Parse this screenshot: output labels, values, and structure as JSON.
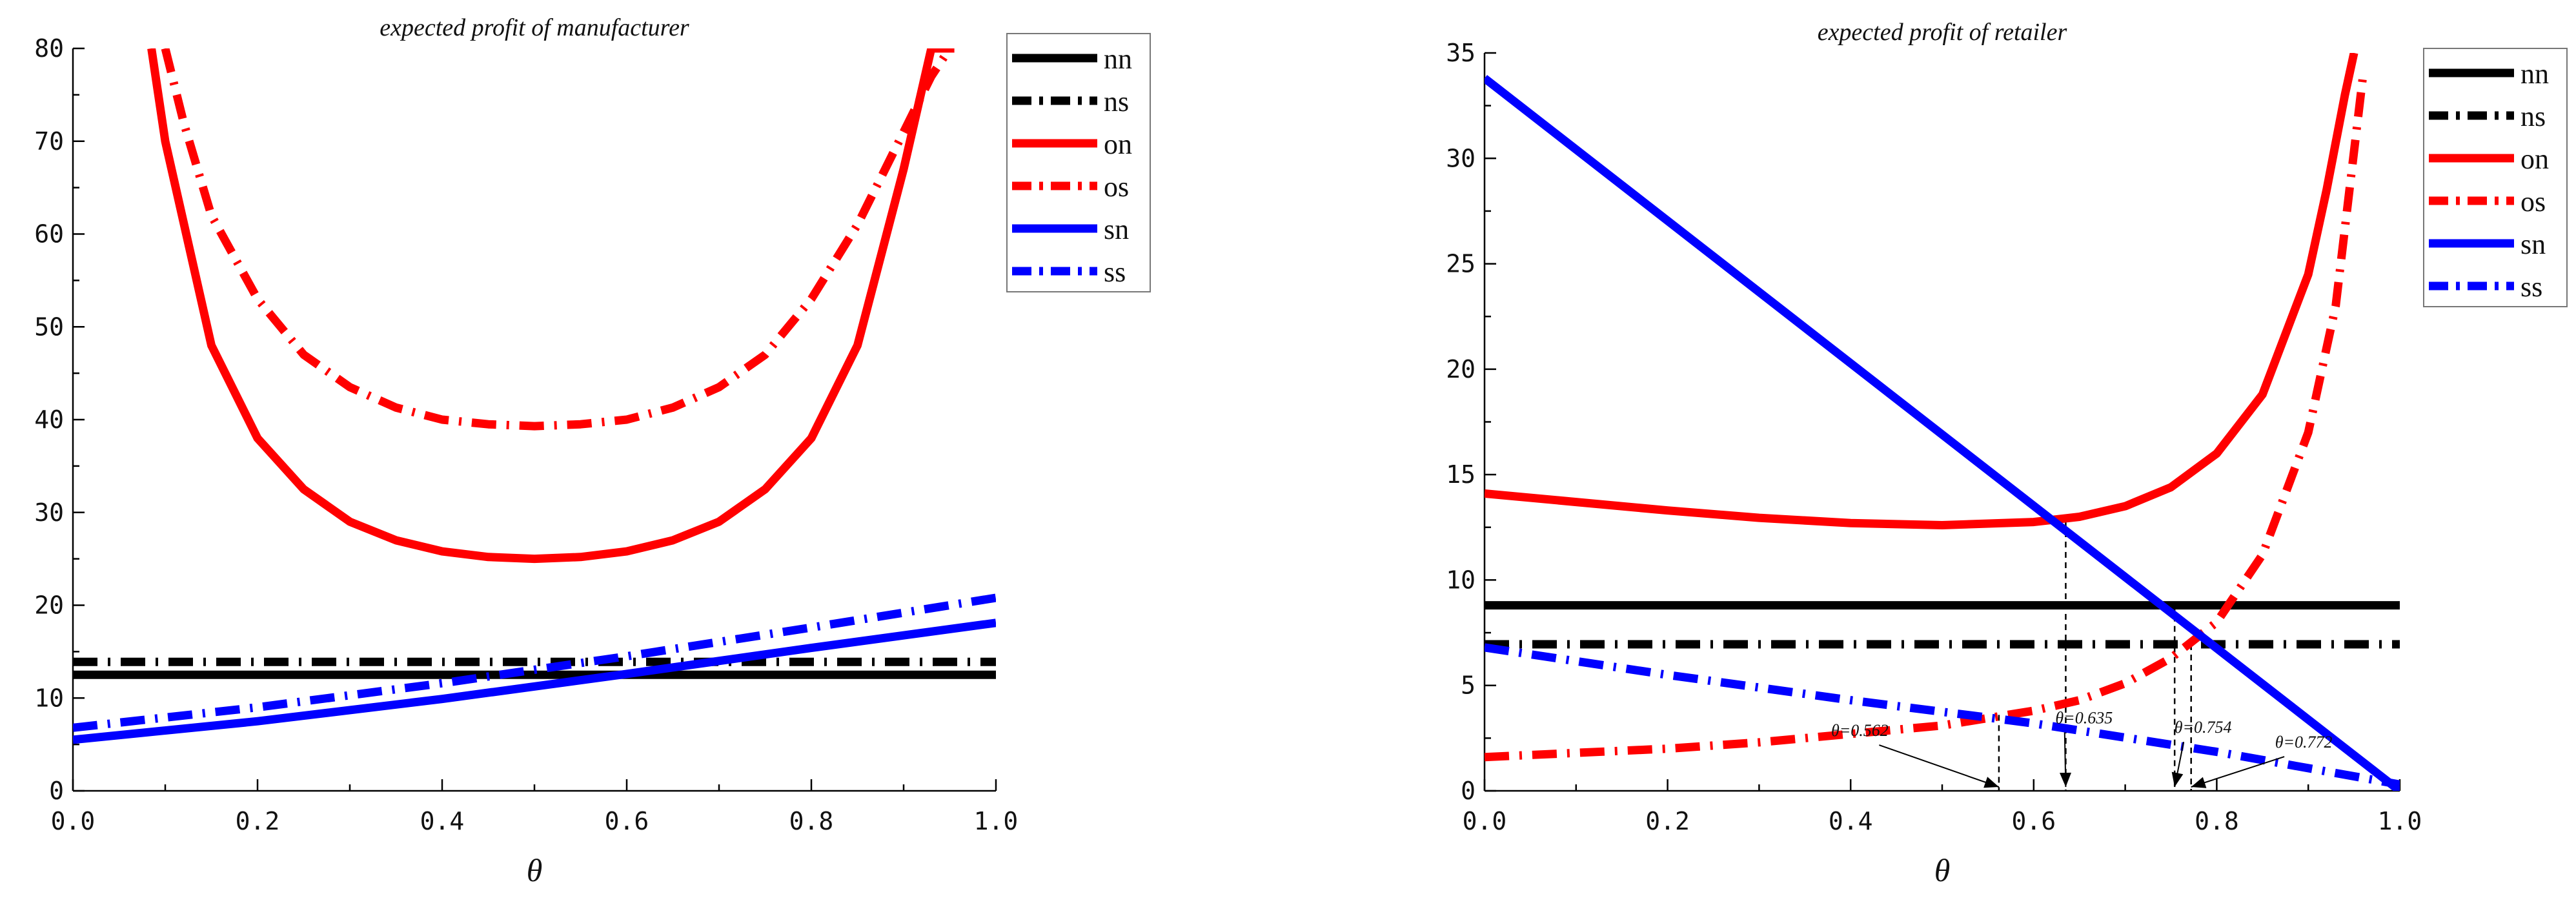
{
  "chart_data": [
    {
      "type": "line",
      "title": "expected profit of manufacturer",
      "xlabel": "θ",
      "ylabel": "",
      "xlim": [
        0,
        1
      ],
      "ylim": [
        0,
        80
      ],
      "xticks": [
        0.0,
        0.2,
        0.4,
        0.6,
        0.8,
        1.0
      ],
      "xtick_labels": [
        "0.0",
        "0.2",
        "0.4",
        "0.6",
        "0.8",
        "1.0"
      ],
      "yticks": [
        0,
        10,
        20,
        30,
        40,
        50,
        60,
        70,
        80
      ],
      "ytick_labels": [
        "0",
        "10",
        "20",
        "30",
        "40",
        "50",
        "60",
        "70",
        "80"
      ],
      "legend_position": "top-right",
      "series": [
        {
          "name": "nn",
          "color": "#000000",
          "style": "solid",
          "x": [
            0,
            0.5,
            1
          ],
          "y": [
            12.5,
            12.5,
            12.5
          ]
        },
        {
          "name": "ns",
          "color": "#000000",
          "style": "dashdot",
          "x": [
            0,
            0.5,
            1
          ],
          "y": [
            13.9,
            13.9,
            13.9
          ]
        },
        {
          "name": "on",
          "color": "#ff0000",
          "style": "solid",
          "x": [
            0.085,
            0.1,
            0.15,
            0.2,
            0.25,
            0.3,
            0.35,
            0.4,
            0.45,
            0.5,
            0.55,
            0.6,
            0.65,
            0.7,
            0.75,
            0.8,
            0.85,
            0.9,
            0.93,
            0.95,
            0.955
          ],
          "y": [
            80,
            70,
            48,
            38,
            32.5,
            29,
            27,
            25.8,
            25.2,
            25,
            25.2,
            25.8,
            27,
            29,
            32.5,
            38,
            48,
            67,
            80,
            80,
            80
          ]
        },
        {
          "name": "os",
          "color": "#ff0000",
          "style": "dashdot",
          "x": [
            0.1,
            0.12,
            0.15,
            0.2,
            0.25,
            0.3,
            0.35,
            0.4,
            0.45,
            0.5,
            0.55,
            0.6,
            0.65,
            0.7,
            0.75,
            0.8,
            0.85,
            0.9,
            0.93,
            0.95
          ],
          "y": [
            80,
            72,
            62,
            53,
            47,
            43.5,
            41.3,
            40,
            39.5,
            39.3,
            39.5,
            40,
            41.3,
            43.5,
            47,
            53,
            61,
            71,
            77,
            80
          ]
        },
        {
          "name": "sn",
          "color": "#0000ff",
          "style": "solid",
          "x": [
            0,
            0.2,
            0.4,
            0.6,
            0.8,
            1.0
          ],
          "y": [
            5.5,
            7.5,
            9.9,
            12.6,
            15.4,
            18.1
          ]
        },
        {
          "name": "ss",
          "color": "#0000ff",
          "style": "dashdot",
          "x": [
            0,
            0.2,
            0.4,
            0.6,
            0.8,
            1.0
          ],
          "y": [
            6.8,
            9.0,
            11.6,
            14.5,
            17.6,
            20.8
          ]
        }
      ]
    },
    {
      "type": "line",
      "title": "expected profit of retailer",
      "xlabel": "θ",
      "ylabel": "",
      "xlim": [
        0,
        1
      ],
      "ylim": [
        0,
        35
      ],
      "xticks": [
        0.0,
        0.2,
        0.4,
        0.6,
        0.8,
        1.0
      ],
      "xtick_labels": [
        "0.0",
        "0.2",
        "0.4",
        "0.6",
        "0.8",
        "1.0"
      ],
      "yticks": [
        0,
        5,
        10,
        15,
        20,
        25,
        30,
        35
      ],
      "ytick_labels": [
        "0",
        "5",
        "10",
        "15",
        "20",
        "25",
        "30",
        "35"
      ],
      "legend_position": "top-right",
      "series": [
        {
          "name": "nn",
          "color": "#000000",
          "style": "solid",
          "x": [
            0,
            0.5,
            1
          ],
          "y": [
            8.8,
            8.8,
            8.8
          ]
        },
        {
          "name": "ns",
          "color": "#000000",
          "style": "dashdot",
          "x": [
            0,
            0.5,
            1
          ],
          "y": [
            6.95,
            6.95,
            6.95
          ]
        },
        {
          "name": "on",
          "color": "#ff0000",
          "style": "solid",
          "x": [
            0,
            0.1,
            0.2,
            0.3,
            0.4,
            0.5,
            0.6,
            0.65,
            0.7,
            0.75,
            0.8,
            0.85,
            0.9,
            0.92,
            0.94,
            0.95
          ],
          "y": [
            14.1,
            13.7,
            13.3,
            12.95,
            12.7,
            12.6,
            12.75,
            13.0,
            13.5,
            14.4,
            16.0,
            18.8,
            24.5,
            28.5,
            33.0,
            35.0
          ]
        },
        {
          "name": "os",
          "color": "#ff0000",
          "style": "dashdot",
          "x": [
            0,
            0.1,
            0.2,
            0.3,
            0.4,
            0.5,
            0.6,
            0.65,
            0.7,
            0.75,
            0.8,
            0.85,
            0.9,
            0.93,
            0.96
          ],
          "y": [
            1.6,
            1.8,
            2.0,
            2.3,
            2.7,
            3.1,
            3.8,
            4.3,
            5.1,
            6.3,
            8.0,
            11.2,
            17.0,
            23.0,
            34.0
          ]
        },
        {
          "name": "sn",
          "color": "#0000ff",
          "style": "solid",
          "x": [
            0,
            1
          ],
          "y": [
            33.8,
            0
          ]
        },
        {
          "name": "ss",
          "color": "#0000ff",
          "style": "dashdot",
          "x": [
            0,
            0.2,
            0.4,
            0.6,
            0.8,
            1.0
          ],
          "y": [
            6.8,
            5.5,
            4.3,
            3.2,
            1.85,
            0.3
          ]
        }
      ],
      "vlines": [
        {
          "x": 0.562,
          "y": 3.6
        },
        {
          "x": 0.635,
          "y": 12.8
        },
        {
          "x": 0.754,
          "y": 8.8
        },
        {
          "x": 0.772,
          "y": 6.95
        }
      ],
      "annotations": [
        {
          "text": "θ=0.562",
          "x": 0.562,
          "label_x": 0.41,
          "label_y": 2.6
        },
        {
          "text": "θ=0.635",
          "x": 0.635,
          "label_x": 0.655,
          "label_y": 3.2
        },
        {
          "text": "θ=0.754",
          "x": 0.754,
          "label_x": 0.785,
          "label_y": 2.75
        },
        {
          "text": "θ=0.772",
          "x": 0.772,
          "label_x": 0.895,
          "label_y": 2.05
        }
      ]
    }
  ]
}
